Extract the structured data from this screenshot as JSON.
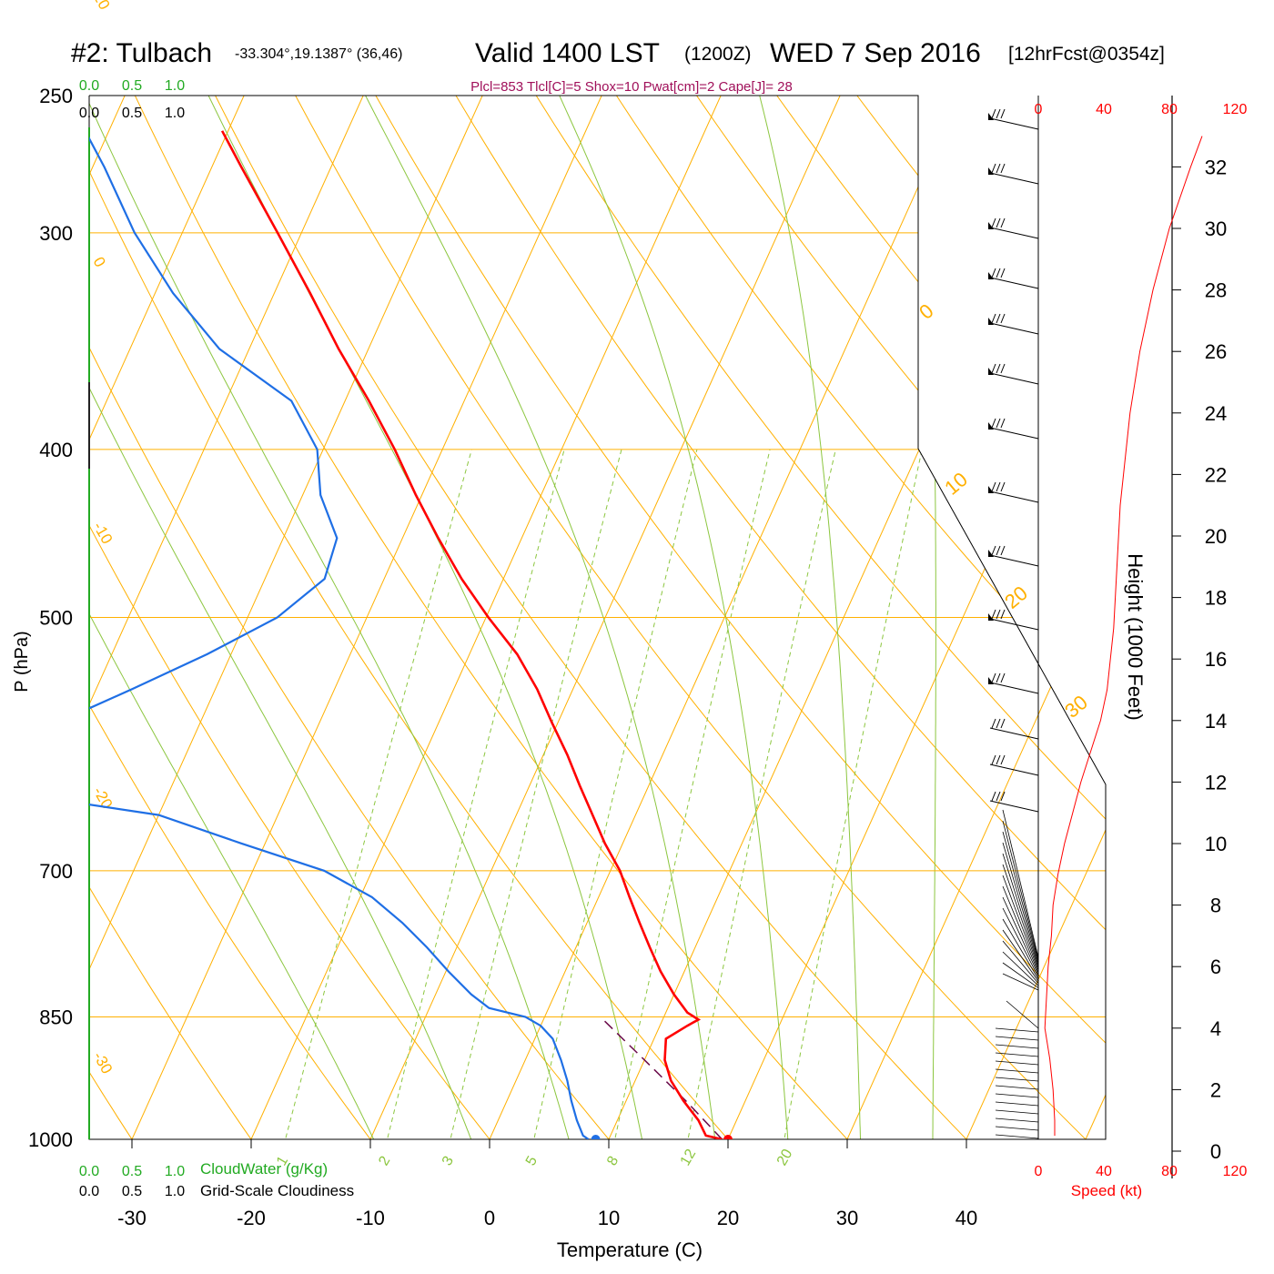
{
  "header": {
    "station": "#2: Tulbach",
    "coords": "-33.304°,19.1387° (36,46)",
    "valid": "Valid 1400 LST",
    "zulu": "(1200Z)",
    "date": "WED 7 Sep 2016",
    "forecast": "[12hrFcst@0354z]",
    "indices": "Plcl=853 Tlcl[C]=5 Shox=10 Pwat[cm]=2 Cape[J]= 28"
  },
  "chart_data": {
    "type": "line",
    "chart_kind": "skew-T log-P sounding",
    "xlabel": "Temperature (C)",
    "ylabel": "P (hPa)",
    "right_label": "Height (1000 Feet)",
    "speed_label": "Speed (kt)",
    "xlim": [
      -33,
      47
    ],
    "ylim": [
      1030,
      250
    ],
    "y_scale": "log",
    "x_ticks": [
      "-30",
      "-20",
      "-10",
      "0",
      "10",
      "20",
      "30",
      "40"
    ],
    "x_tick_values": [
      -30,
      -20,
      -10,
      0,
      10,
      20,
      30,
      40
    ],
    "p_ticks": [
      "250",
      "300",
      "400",
      "500",
      "700",
      "850",
      "1000"
    ],
    "p_tick_values": [
      250,
      300,
      400,
      500,
      700,
      850,
      1000
    ],
    "height_ticks": [
      "0",
      "2",
      "4",
      "6",
      "8",
      "10",
      "12",
      "14",
      "16",
      "18",
      "20",
      "22",
      "24",
      "26",
      "28",
      "30",
      "32"
    ],
    "height_tick_values": [
      0,
      2,
      4,
      6,
      8,
      10,
      12,
      14,
      16,
      18,
      20,
      22,
      24,
      26,
      28,
      30,
      32
    ],
    "speed_ticks": [
      "0",
      "40",
      "80",
      "120"
    ],
    "speed_tick_values": [
      0,
      40,
      80,
      120
    ],
    "cloud_scale_ticks": [
      "0.0",
      "0.5",
      "1.0"
    ],
    "cloudwater_label": "CloudWater (g/Kg)",
    "cloudiness_label": "Grid-Scale Cloudiness",
    "isotherm_labels": [
      "10",
      "0",
      "-10",
      "-20",
      "-30"
    ],
    "isotherm_label_temps": [
      10,
      0,
      -10,
      -20,
      -30
    ],
    "adiabat_labels": [
      "0",
      "10",
      "20",
      "30"
    ],
    "adiabat_label_temps": [
      0,
      10,
      20,
      30
    ],
    "mixing_ratio_labels": [
      "1",
      "2",
      "3",
      "5",
      "8",
      "12",
      "20"
    ],
    "mixing_ratio_values": [
      1,
      2,
      3,
      5,
      8,
      12,
      20
    ],
    "temperature": {
      "p": [
        1000,
        995,
        975,
        950,
        925,
        900,
        875,
        860,
        853,
        845,
        825,
        800,
        775,
        750,
        725,
        700,
        675,
        650,
        625,
        600,
        575,
        550,
        525,
        500,
        475,
        450,
        425,
        400,
        375,
        350,
        325,
        300,
        275,
        262
      ],
      "t": [
        19.5,
        18.0,
        16.8,
        14.8,
        13.0,
        11.7,
        11.0,
        12.3,
        13.0,
        11.8,
        10.0,
        8.0,
        6.2,
        4.4,
        2.6,
        0.8,
        -1.5,
        -3.6,
        -5.8,
        -8.0,
        -10.5,
        -13.0,
        -16.0,
        -19.8,
        -23.5,
        -27.0,
        -30.5,
        -34.0,
        -38.0,
        -42.5,
        -47.0,
        -52.0,
        -57.5,
        -60.5
      ]
    },
    "dewpoint": {
      "p": [
        1000,
        995,
        975,
        950,
        925,
        900,
        875,
        860,
        850,
        840,
        825,
        800,
        775,
        750,
        725,
        700,
        675,
        650,
        640,
        630,
        625,
        600,
        575,
        550,
        525,
        500,
        475,
        450,
        425,
        400,
        375,
        350,
        325,
        300,
        275,
        262
      ],
      "td": [
        8.3,
        7.7,
        6.6,
        5.4,
        4.3,
        3.0,
        1.5,
        0.0,
        -1.6,
        -5.0,
        -7.0,
        -9.8,
        -12.5,
        -15.5,
        -19.0,
        -24.0,
        -32.0,
        -40.0,
        -47.0,
        -53.0,
        -56.5,
        -56.5,
        -52.0,
        -47.0,
        -42.0,
        -37.5,
        -35.0,
        -35.5,
        -38.5,
        -40.5,
        -44.5,
        -52.5,
        -58.5,
        -64.0,
        -69.0,
        -72.0
      ]
    },
    "parcel_path": {
      "p": [
        1000,
        950,
        900,
        853
      ],
      "t": [
        19.5,
        15.0,
        10.0,
        5.0
      ]
    },
    "surface_points": {
      "temp": {
        "p": 1000,
        "t": 20.0,
        "color": "#ff0000"
      },
      "dewpoint": {
        "p": 1000,
        "t": 8.9,
        "color": "#1f6fe5"
      }
    },
    "height_profile": {
      "height_kft": [
        0.5,
        1.0,
        2.0,
        3.0,
        4.0,
        5.0,
        6.0,
        7.0,
        8.0,
        9.0,
        10.0,
        11.0,
        12.0,
        13.0,
        14.0,
        15.0,
        16.0,
        17.0,
        18.0,
        19.0,
        20.0,
        21.0,
        22.0,
        24.0,
        26.0,
        28.0,
        30.0,
        32.0,
        33.0
      ],
      "speed_kt": [
        10,
        10,
        9,
        7,
        4,
        5,
        6,
        8,
        9,
        12,
        16,
        21,
        26,
        32,
        38,
        42,
        44,
        46,
        47,
        48,
        49,
        50,
        52,
        56,
        62,
        70,
        80,
        93,
        100
      ]
    },
    "colors": {
      "temperature": "#ff0000",
      "dewpoint": "#1f6fe5",
      "isobar": "#ffb000",
      "isotherm": "#ffb000",
      "dry_adiabat": "#ffb000",
      "moist_adiabat": "#8cc63f",
      "mixing_ratio": "#8cc63f",
      "green_label": "#22aa22",
      "speed": "#ff0000",
      "indices": "#a0105a"
    }
  }
}
